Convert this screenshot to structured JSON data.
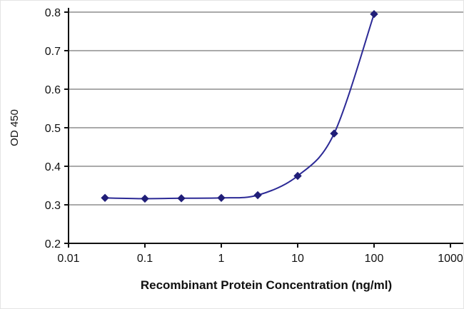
{
  "figure": {
    "background": "#ffffff"
  },
  "chart_data": {
    "type": "line",
    "title": "",
    "xlabel": "Recombinant Protein Concentration (ng/ml)",
    "ylabel": "OD 450",
    "x_scale": "log",
    "xlim": [
      0.01,
      1000
    ],
    "ylim": [
      0.2,
      0.8
    ],
    "x_ticks": [
      0.01,
      0.1,
      1,
      10,
      100,
      1000
    ],
    "x_tick_labels": [
      "0.01",
      "0.1",
      "1",
      "10",
      "100",
      "1000"
    ],
    "y_ticks": [
      0.2,
      0.3,
      0.4,
      0.5,
      0.6,
      0.7,
      0.8
    ],
    "y_tick_labels": [
      "0.2",
      "0.3",
      "0.4",
      "0.5",
      "0.6",
      "0.7",
      "0.8"
    ],
    "grid": "horizontal",
    "legend": "none",
    "colors": {
      "line": "#2c2a96",
      "marker": "#201e78",
      "grid": "#777777",
      "axis": "#111111",
      "text": "#111111"
    },
    "series": [
      {
        "name": "OD450",
        "marker": "diamond",
        "x": [
          0.03,
          0.1,
          0.3,
          1,
          3,
          10,
          30,
          100
        ],
        "y": [
          0.318,
          0.316,
          0.317,
          0.318,
          0.325,
          0.375,
          0.485,
          0.795
        ]
      }
    ]
  }
}
